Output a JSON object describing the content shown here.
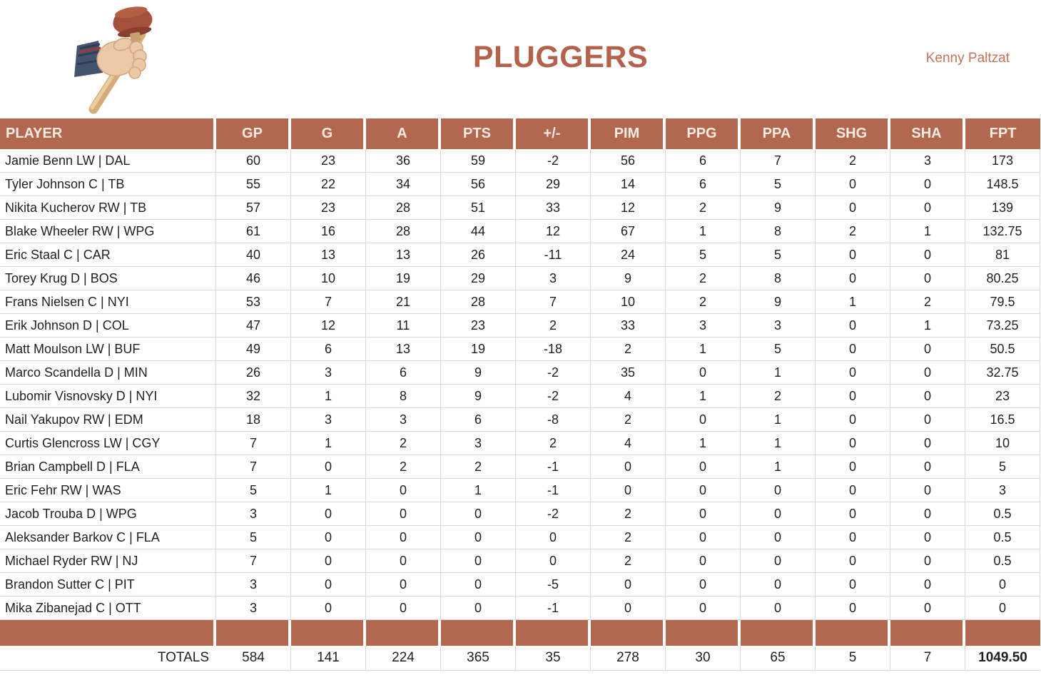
{
  "page": {
    "title": "PLUGGERS",
    "manager": "Kenny Paltzat",
    "logo": "hand-holding-plunger"
  },
  "colors": {
    "accent": "#b2684e",
    "title": "#b4624c",
    "byline": "#c0735a",
    "grid": "#d9d9d9",
    "header_text": "#f7ebe4"
  },
  "table": {
    "columns": [
      "PLAYER",
      "GP",
      "G",
      "A",
      "PTS",
      "+/-",
      "PIM",
      "PPG",
      "PPA",
      "SHG",
      "SHA",
      "FPT"
    ],
    "rows": [
      {
        "player": "Jamie Benn LW | DAL",
        "values": [
          "60",
          "23",
          "36",
          "59",
          "-2",
          "56",
          "6",
          "7",
          "2",
          "3",
          "173"
        ]
      },
      {
        "player": "Tyler Johnson C | TB",
        "values": [
          "55",
          "22",
          "34",
          "56",
          "29",
          "14",
          "6",
          "5",
          "0",
          "0",
          "148.5"
        ]
      },
      {
        "player": "Nikita Kucherov RW | TB",
        "values": [
          "57",
          "23",
          "28",
          "51",
          "33",
          "12",
          "2",
          "9",
          "0",
          "0",
          "139"
        ]
      },
      {
        "player": "Blake Wheeler RW | WPG",
        "values": [
          "61",
          "16",
          "28",
          "44",
          "12",
          "67",
          "1",
          "8",
          "2",
          "1",
          "132.75"
        ]
      },
      {
        "player": "Eric Staal C | CAR",
        "values": [
          "40",
          "13",
          "13",
          "26",
          "-11",
          "24",
          "5",
          "5",
          "0",
          "0",
          "81"
        ]
      },
      {
        "player": "Torey Krug D | BOS",
        "values": [
          "46",
          "10",
          "19",
          "29",
          "3",
          "9",
          "2",
          "8",
          "0",
          "0",
          "80.25"
        ]
      },
      {
        "player": "Frans Nielsen C | NYI",
        "values": [
          "53",
          "7",
          "21",
          "28",
          "7",
          "10",
          "2",
          "9",
          "1",
          "2",
          "79.5"
        ]
      },
      {
        "player": "Erik Johnson D | COL",
        "values": [
          "47",
          "12",
          "11",
          "23",
          "2",
          "33",
          "3",
          "3",
          "0",
          "1",
          "73.25"
        ]
      },
      {
        "player": "Matt Moulson LW | BUF",
        "values": [
          "49",
          "6",
          "13",
          "19",
          "-18",
          "2",
          "1",
          "5",
          "0",
          "0",
          "50.5"
        ]
      },
      {
        "player": "Marco Scandella D | MIN",
        "values": [
          "26",
          "3",
          "6",
          "9",
          "-2",
          "35",
          "0",
          "1",
          "0",
          "0",
          "32.75"
        ]
      },
      {
        "player": "Lubomir Visnovsky D | NYI",
        "values": [
          "32",
          "1",
          "8",
          "9",
          "-2",
          "4",
          "1",
          "2",
          "0",
          "0",
          "23"
        ]
      },
      {
        "player": "Nail Yakupov RW | EDM",
        "values": [
          "18",
          "3",
          "3",
          "6",
          "-8",
          "2",
          "0",
          "1",
          "0",
          "0",
          "16.5"
        ]
      },
      {
        "player": "Curtis Glencross LW | CGY",
        "values": [
          "7",
          "1",
          "2",
          "3",
          "2",
          "4",
          "1",
          "1",
          "0",
          "0",
          "10"
        ]
      },
      {
        "player": "Brian Campbell D | FLA",
        "values": [
          "7",
          "0",
          "2",
          "2",
          "-1",
          "0",
          "0",
          "1",
          "0",
          "0",
          "5"
        ]
      },
      {
        "player": "Eric Fehr RW | WAS",
        "values": [
          "5",
          "1",
          "0",
          "1",
          "-1",
          "0",
          "0",
          "0",
          "0",
          "0",
          "3"
        ]
      },
      {
        "player": "Jacob Trouba D | WPG",
        "values": [
          "3",
          "0",
          "0",
          "0",
          "-2",
          "2",
          "0",
          "0",
          "0",
          "0",
          "0.5"
        ]
      },
      {
        "player": "Aleksander Barkov C | FLA",
        "values": [
          "5",
          "0",
          "0",
          "0",
          "0",
          "2",
          "0",
          "0",
          "0",
          "0",
          "0.5"
        ]
      },
      {
        "player": "Michael Ryder RW | NJ",
        "values": [
          "7",
          "0",
          "0",
          "0",
          "0",
          "2",
          "0",
          "0",
          "0",
          "0",
          "0.5"
        ]
      },
      {
        "player": "Brandon Sutter C | PIT",
        "values": [
          "3",
          "0",
          "0",
          "0",
          "-5",
          "0",
          "0",
          "0",
          "0",
          "0",
          "0"
        ]
      },
      {
        "player": "Mika Zibanejad C | OTT",
        "values": [
          "3",
          "0",
          "0",
          "0",
          "-1",
          "0",
          "0",
          "0",
          "0",
          "0",
          "0"
        ]
      }
    ],
    "totals_label": "TOTALS",
    "totals": [
      "584",
      "141",
      "224",
      "365",
      "35",
      "278",
      "30",
      "65",
      "5",
      "7",
      "1049.50"
    ]
  }
}
